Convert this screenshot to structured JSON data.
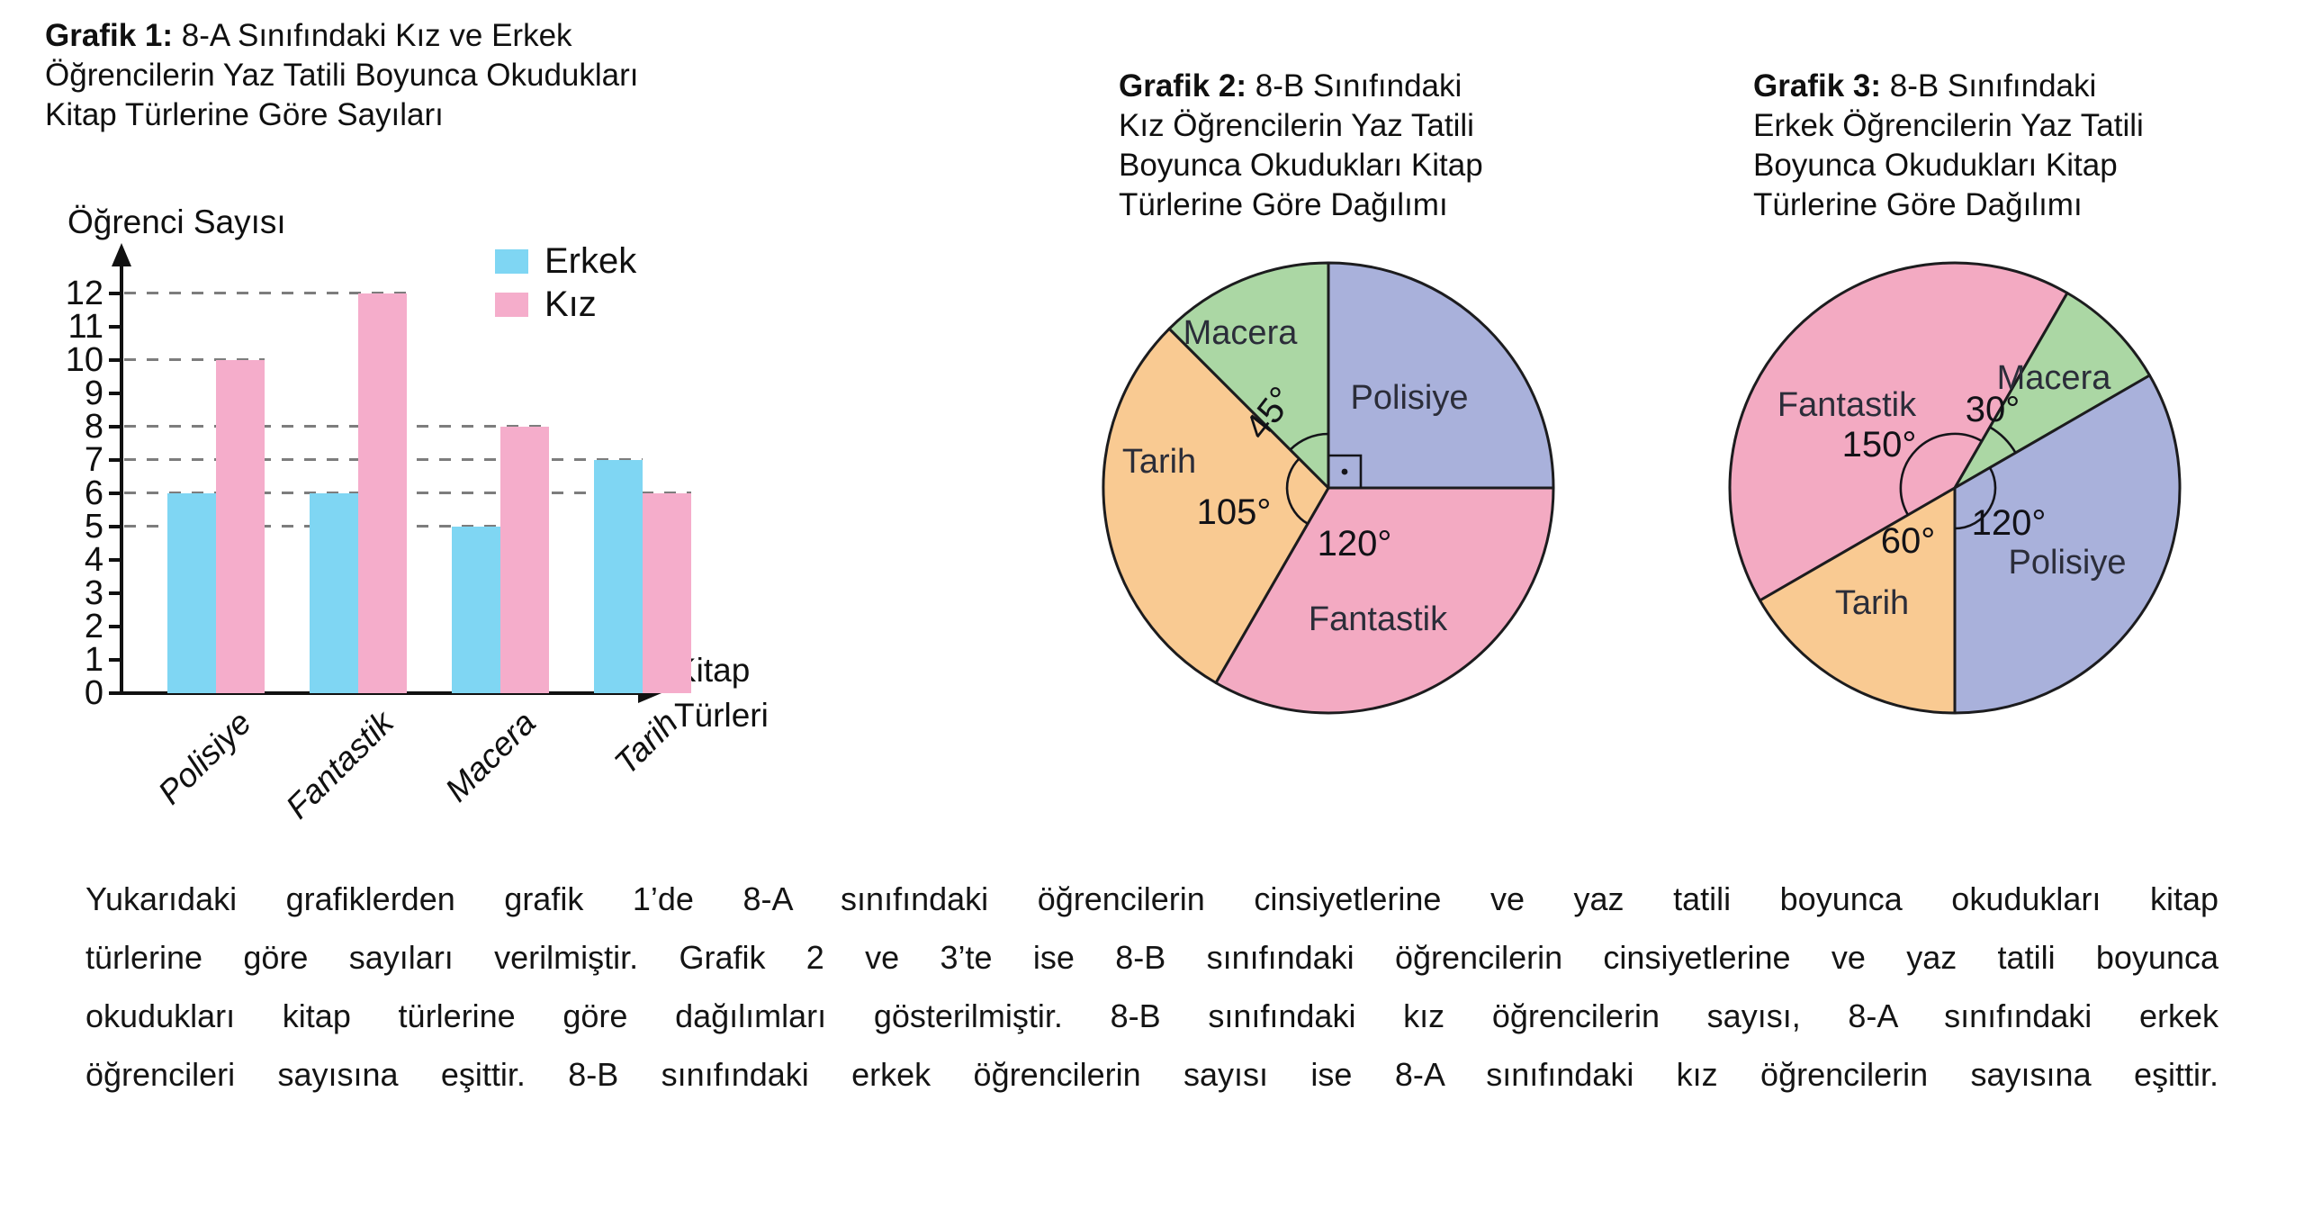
{
  "page": {
    "background": "#ffffff",
    "ink": "#1a1a1a"
  },
  "caption": {
    "lines": [
      "Yukarıdaki grafiklerden grafik 1’de 8-A sınıfındaki öğrencilerin cinsiyetlerine ve yaz tatili boyunca okudukları kitap",
      "türlerine göre sayıları verilmiştir. Grafik 2 ve 3’te ise 8-B sınıfındaki öğrencilerin cinsiyetlerine ve yaz tatili boyunca",
      "okudukları kitap türlerine göre dağılımları gösterilmiştir. 8-B sınıfındaki kız öğrencilerin sayısı, 8-A sınıfındaki erkek",
      "öğrencileri sayısına eşittir. 8-B sınıfındaki erkek öğrencilerin sayısı ise 8-A sınıfındaki kız öğrencilerin sayısına eşittir."
    ]
  },
  "chart_data": [
    {
      "type": "bar",
      "title_label": "Grafik 1:",
      "title_lines": [
        "8-A Sınıfındaki Kız ve Erkek",
        "Öğrencilerin Yaz Tatili Boyunca Okudukları",
        "Kitap Türlerine Göre Sayıları"
      ],
      "ylabel": "Öğrenci Sayısı",
      "xlabel_lines": [
        "Kitap",
        "Türleri"
      ],
      "categories": [
        "Polisiye",
        "Fantastik",
        "Macera",
        "Tarih"
      ],
      "series": [
        {
          "name": "Erkek",
          "color": "#7FD6F3",
          "values": [
            6,
            6,
            5,
            7
          ]
        },
        {
          "name": "Kız",
          "color": "#F5ADCB",
          "values": [
            10,
            12,
            8,
            6
          ]
        }
      ],
      "ylim": [
        0,
        12
      ],
      "yticks": [
        0,
        1,
        2,
        3,
        4,
        5,
        6,
        7,
        8,
        9,
        10,
        11,
        12
      ],
      "grid_style": "dashed",
      "legend_position": "top-right",
      "gridlines": [
        {
          "value": 5,
          "end_bar": [
            2,
            0
          ]
        },
        {
          "value": 6,
          "end_bar": [
            3,
            1
          ]
        },
        {
          "value": 7,
          "end_bar": [
            3,
            0
          ]
        },
        {
          "value": 8,
          "end_bar": [
            2,
            1
          ]
        },
        {
          "value": 10,
          "end_bar": [
            0,
            1
          ]
        },
        {
          "value": 12,
          "end_bar": [
            1,
            1
          ]
        }
      ]
    },
    {
      "type": "pie",
      "title_label": "Grafik 2:",
      "title_lines": [
        "8-B Sınıfındaki",
        "Kız Öğrencilerin Yaz Tatili",
        "Boyunca Okudukları Kitap",
        "Türlerine Göre Dağılımı"
      ],
      "unit": "degrees",
      "start_angle": 0,
      "slices": [
        {
          "label": "Polisiye",
          "angle": 90,
          "angle_label": "",
          "color": "#A9B1DB",
          "label_pos": [
            360,
            182
          ],
          "value_pos": [
            0,
            0
          ]
        },
        {
          "label": "Fantastik",
          "angle": 120,
          "angle_label": "120°",
          "color": "#F3AAC2",
          "label_pos": [
            325,
            428
          ],
          "value_pos": [
            299,
            345
          ]
        },
        {
          "label": "Tarih",
          "angle": 105,
          "angle_label": "105°",
          "color": "#F9CA92",
          "label_pos": [
            82,
            253
          ],
          "value_pos": [
            165,
            310
          ]
        },
        {
          "label": "Macera",
          "angle": 45,
          "angle_label": "45°",
          "color": "#ABD7A4",
          "label_pos": [
            172,
            110
          ],
          "value_pos": [
            215,
            195
          ],
          "value_rotate": -52
        }
      ],
      "marks": [
        {
          "type": "right_angle",
          "size": 36
        },
        {
          "type": "arc",
          "r": 46,
          "from": 210,
          "to": 315
        },
        {
          "type": "arc",
          "r": 60,
          "from": 315,
          "to": 360
        }
      ]
    },
    {
      "type": "pie",
      "title_label": "Grafik 3:",
      "title_lines": [
        "8-B Sınıfındaki",
        "Erkek Öğrencilerin Yaz Tatili",
        "Boyunca Okudukları Kitap",
        "Türlerine Göre Dağılımı"
      ],
      "unit": "degrees",
      "start_angle": 240,
      "slices": [
        {
          "label": "Fantastik",
          "angle": 150,
          "angle_label": "150°",
          "color": "#F3AAC2",
          "label_pos": [
            150,
            190
          ],
          "value_pos": [
            186,
            235
          ]
        },
        {
          "label": "Macera",
          "angle": 30,
          "angle_label": "30°",
          "color": "#ABD7A4",
          "label_pos": [
            380,
            160
          ],
          "value_pos": [
            312,
            196
          ]
        },
        {
          "label": "Polisiye",
          "angle": 120,
          "angle_label": "120°",
          "color": "#A9B1DB",
          "label_pos": [
            395,
            365
          ],
          "value_pos": [
            330,
            322
          ]
        },
        {
          "label": "Tarih",
          "angle": 60,
          "angle_label": "60°",
          "color": "#F9CA92",
          "label_pos": [
            178,
            410
          ],
          "value_pos": [
            218,
            342
          ]
        }
      ],
      "marks": [
        {
          "type": "arc",
          "r": 60,
          "from": 240,
          "to": 390
        },
        {
          "type": "arc",
          "r": 45,
          "from": 60,
          "to": 180
        },
        {
          "type": "arc",
          "r": 78,
          "from": 30,
          "to": 60
        }
      ]
    }
  ]
}
